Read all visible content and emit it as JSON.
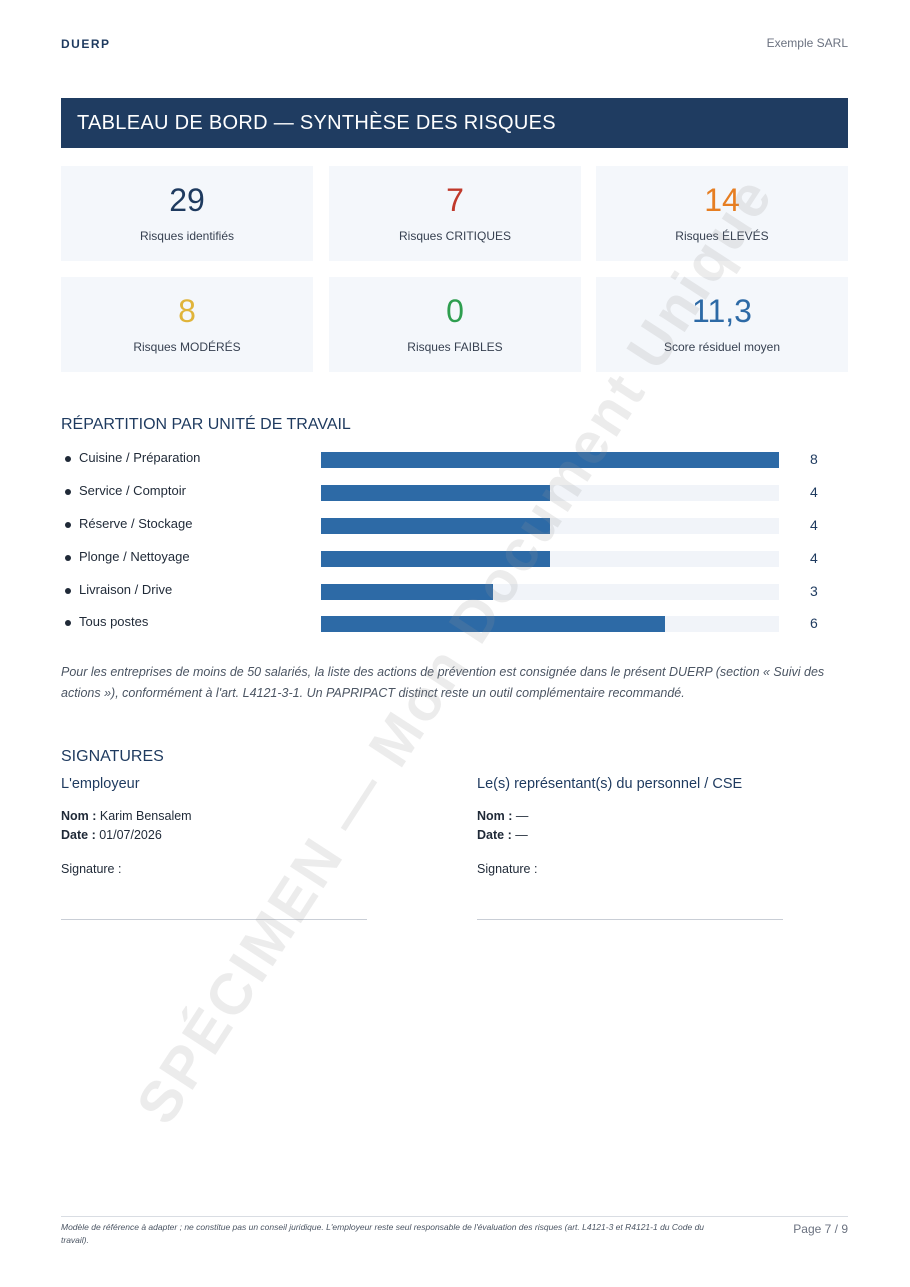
{
  "header": {
    "brand": "DUERP",
    "company": "Exemple SARL"
  },
  "banner": {
    "title": "TABLEAU DE BORD — SYNTHÈSE DES RISQUES"
  },
  "kpis": [
    {
      "value": "29",
      "label": "Risques identifiés",
      "color": "#1e3a5f"
    },
    {
      "value": "7",
      "label": "Risques CRITIQUES",
      "color": "#c0392b"
    },
    {
      "value": "14",
      "label": "Risques ÉLEVÉS",
      "color": "#e67e22"
    },
    {
      "value": "8",
      "label": "Risques MODÉRÉS",
      "color": "#e0b43a"
    },
    {
      "value": "0",
      "label": "Risques FAIBLES",
      "color": "#2e9e4f"
    },
    {
      "value": "11,3",
      "label": "Score résiduel moyen",
      "color": "#2d6aa6"
    }
  ],
  "distribution": {
    "title": "RÉPARTITION PAR UNITÉ DE TRAVAIL",
    "units": [
      {
        "name": "Cuisine / Préparation",
        "count": "8",
        "value": 8
      },
      {
        "name": "Service / Comptoir",
        "count": "4",
        "value": 4
      },
      {
        "name": "Réserve / Stockage",
        "count": "4",
        "value": 4
      },
      {
        "name": "Plonge / Nettoyage",
        "count": "4",
        "value": 4
      },
      {
        "name": "Livraison / Drive",
        "count": "3",
        "value": 3
      },
      {
        "name": "Tous postes",
        "count": "6",
        "value": 6
      }
    ],
    "max": 8
  },
  "note": "Pour les entreprises de moins de 50 salariés, la liste des actions de prévention est consignée dans le présent DUERP (section « Suivi des actions »), conformément à l'art. L4121-3-1. Un PAPRIPACT distinct reste un outil complémentaire recommandé.",
  "signatures": {
    "title": "SIGNATURES",
    "employer": {
      "heading": "L'employeur",
      "name_label": "Nom :",
      "name_value": " Karim Bensalem",
      "date_label": "Date :",
      "date_value": " 01/07/2026",
      "signature_label": "Signature :"
    },
    "staff": {
      "heading": "Le(s) représentant(s) du personnel / CSE",
      "name_label": "Nom :",
      "name_value": " —",
      "date_label": "Date :",
      "date_value": " —",
      "signature_label": "Signature :"
    }
  },
  "footer": {
    "disclaimer": "Modèle de référence à adapter ; ne constitue pas un conseil juridique. L'employeur reste seul responsable de l'évaluation des risques (art. L4121-3 et R4121-1 du Code du travail).",
    "page": "Page 7 / 9"
  },
  "watermark": "SPÉCIMEN — Mon Document Unique"
}
